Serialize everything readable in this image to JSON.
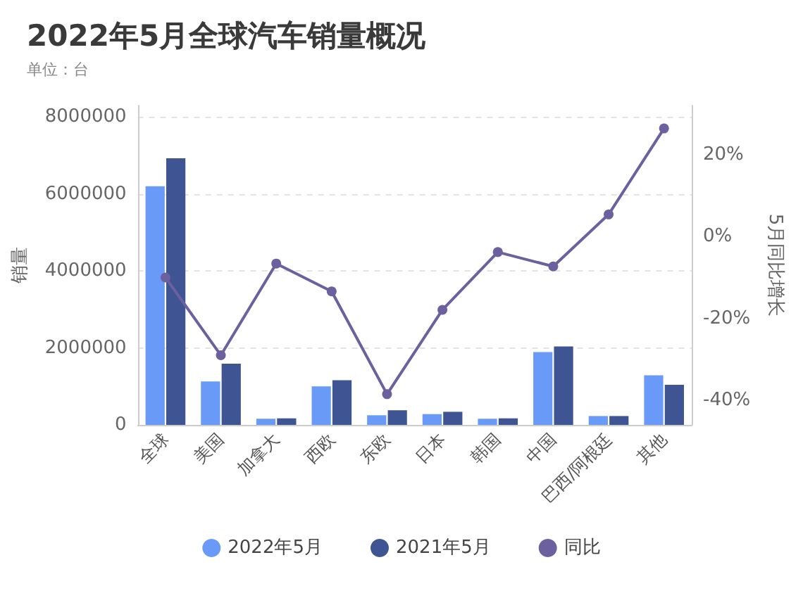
{
  "chart_data": {
    "type": "bar",
    "title": "2022年5月全球汽车销量概况",
    "subtitle": "单位：台",
    "ylabel": "销量",
    "y2label": "5月同比增长",
    "categories": [
      "全球",
      "美国",
      "加拿大",
      "西欧",
      "东欧",
      "日本",
      "韩国",
      "中国",
      "巴西/阿根廷",
      "其他"
    ],
    "series": [
      {
        "name": "2022年5月",
        "color": "#6a9af7",
        "values": [
          6200000,
          1130000,
          160000,
          1000000,
          250000,
          280000,
          160000,
          1890000,
          230000,
          1290000
        ]
      },
      {
        "name": "2021年5月",
        "color": "#3e5493",
        "values": [
          6930000,
          1590000,
          170000,
          1160000,
          380000,
          340000,
          170000,
          2040000,
          230000,
          1040000
        ]
      },
      {
        "name": "同比",
        "type": "line",
        "axis": "y2",
        "color": "#6d609f",
        "values": [
          -10,
          -29,
          -6.6,
          -13.4,
          -38.5,
          -17.9,
          -3.8,
          -7.3,
          5.4,
          26.4
        ]
      }
    ],
    "ylim": [
      0,
      8300000
    ],
    "yticks": [
      0,
      2000000,
      4000000,
      6000000,
      8000000
    ],
    "y2lim": [
      -46,
      32
    ],
    "y2ticks": [
      {
        "value": -40,
        "label": "-40%"
      },
      {
        "value": -20,
        "label": "-20%"
      },
      {
        "value": 0,
        "label": "0%"
      },
      {
        "value": 20,
        "label": "20%"
      }
    ],
    "grid": "y",
    "legend": "bottom",
    "marker": "circle"
  }
}
